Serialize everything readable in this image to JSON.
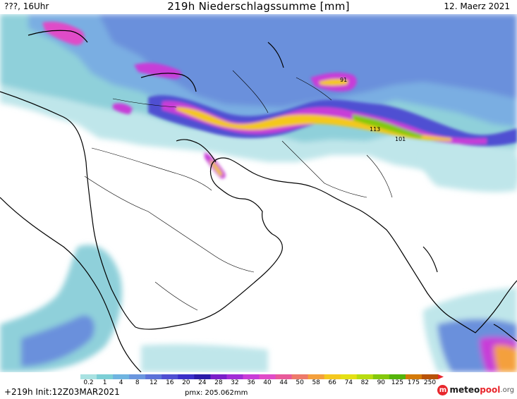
{
  "header": {
    "left": "???, 16Uhr",
    "title": "219h Niederschlagssumme [mm]",
    "right": "12. Maerz 2021"
  },
  "map": {
    "variable": "precipitation sum",
    "units": "mm",
    "annotations": [
      "113",
      "101",
      "91"
    ]
  },
  "legend": {
    "labels": [
      "0.2",
      "1",
      "4",
      "8",
      "12",
      "16",
      "20",
      "24",
      "28",
      "32",
      "36",
      "40",
      "44",
      "50",
      "58",
      "66",
      "74",
      "82",
      "90",
      "125",
      "175",
      "250"
    ],
    "colors": [
      "#a9e2e2",
      "#7ccfd6",
      "#6fb4e0",
      "#6a96de",
      "#5b72d8",
      "#4f4fd2",
      "#3a2fc8",
      "#2a1aa8",
      "#7a1ec8",
      "#a12cd6",
      "#c83cd8",
      "#e04bc8",
      "#e85a9a",
      "#ee7a6a",
      "#f4a03c",
      "#f4c81e",
      "#e4e014",
      "#b8dc10",
      "#84c80c",
      "#54b40a",
      "#d47a08",
      "#b85208"
    ]
  },
  "footer": {
    "init": "+219h Init:12Z03MAR2021",
    "pmx": "pmx: 205.062mm",
    "brand": {
      "part1": "meteo",
      "part2": "pool",
      "part3": ".org"
    }
  }
}
